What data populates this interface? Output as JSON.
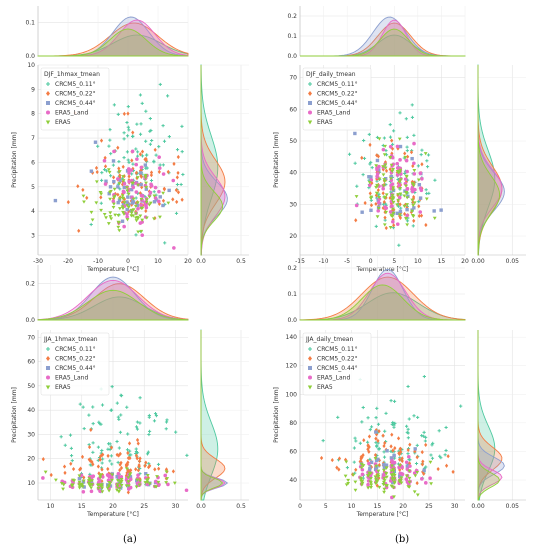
{
  "colors": {
    "CRCM5_0.11": "#4fc9a0",
    "CRCM5_0.22": "#f47c44",
    "CRCM5_0.44": "#8c9fcf",
    "ERA5_Land": "#e86bc7",
    "ERA5": "#8fce3a"
  },
  "legend_labels": [
    "CRCM5_0.11°",
    "CRCM5_0.22°",
    "CRCM5_0.44°",
    "ERA5_Land",
    "ERA5"
  ],
  "captions": {
    "a": "(a)",
    "b": "(b)"
  },
  "chart_data": [
    {
      "type": "scatter",
      "title": "DJF_1hmax_tmean",
      "xlabel": "Temperature [°C]",
      "ylabel": "Precipitation [mm]",
      "xlim": [
        -30,
        20
      ],
      "ylim": [
        2.2,
        10.0
      ],
      "xticks": [
        -30,
        -20,
        -10,
        0,
        10,
        20
      ],
      "yticks": [
        3,
        4,
        5,
        6,
        7,
        8,
        9,
        10
      ],
      "top_marginal": {
        "ylim": [
          0,
          0.15
        ],
        "yticks": [
          "0.0",
          "0.1"
        ]
      },
      "right_marginal": {
        "xlim": [
          0,
          0.6
        ],
        "xticks": [
          "0.0",
          "0.5"
        ]
      },
      "legend_position": "upper-left",
      "series": [
        {
          "name": "CRCM5_0.11°",
          "x_mean": 3,
          "x_sd": 8,
          "y_mean": 5.8,
          "y_sd": 1.3,
          "n": 120
        },
        {
          "name": "CRCM5_0.22°",
          "x_mean": 2,
          "x_sd": 8,
          "y_mean": 5.2,
          "y_sd": 0.9,
          "n": 100
        },
        {
          "name": "CRCM5_0.44°",
          "x_mean": 1,
          "x_sd": 6,
          "y_mean": 4.5,
          "y_sd": 0.7,
          "n": 40
        },
        {
          "name": "ERA5_Land",
          "x_mean": 3,
          "x_sd": 6,
          "y_mean": 4.6,
          "y_sd": 0.8,
          "n": 70
        },
        {
          "name": "ERA5",
          "x_mean": 0,
          "x_sd": 6,
          "y_mean": 4.2,
          "y_sd": 0.6,
          "n": 90
        }
      ]
    },
    {
      "type": "scatter",
      "title": "DJF_daily_tmean",
      "xlabel": "Temperature [°C]",
      "ylabel": "Precipitation [mm]",
      "xlim": [
        -15,
        20
      ],
      "ylim": [
        14,
        74
      ],
      "xticks": [
        -15,
        -10,
        -5,
        0,
        5,
        10,
        15,
        20
      ],
      "yticks": [
        20,
        30,
        40,
        50,
        60,
        70
      ],
      "top_marginal": {
        "ylim": [
          0,
          0.25
        ],
        "yticks": [
          "0.0",
          "0.1",
          "0.2"
        ]
      },
      "right_marginal": {
        "xlim": [
          0,
          0.07
        ],
        "xticks": [
          "0.00",
          "0.05"
        ]
      },
      "legend_position": "upper-left",
      "series": [
        {
          "name": "CRCM5_0.11°",
          "x_mean": 5,
          "x_sd": 3.5,
          "y_mean": 38,
          "y_sd": 9,
          "n": 110
        },
        {
          "name": "CRCM5_0.22°",
          "x_mean": 5,
          "x_sd": 3.5,
          "y_mean": 35,
          "y_sd": 7,
          "n": 90
        },
        {
          "name": "CRCM5_0.44°",
          "x_mean": 4,
          "x_sd": 3.5,
          "y_mean": 34,
          "y_sd": 6,
          "n": 30
        },
        {
          "name": "ERA5_Land",
          "x_mean": 5,
          "x_sd": 2.5,
          "y_mean": 35,
          "y_sd": 6,
          "n": 70
        },
        {
          "name": "ERA5",
          "x_mean": 5,
          "x_sd": 3,
          "y_mean": 33,
          "y_sd": 6,
          "n": 90
        }
      ]
    },
    {
      "type": "scatter",
      "title": "JJA_1hmax_tmean",
      "xlabel": "Temperature [°C]",
      "ylabel": "Precipitation [mm]",
      "xlim": [
        8,
        32
      ],
      "ylim": [
        3,
        73
      ],
      "xticks": [
        10,
        15,
        20,
        25,
        30
      ],
      "yticks": [
        10,
        20,
        30,
        40,
        50,
        60,
        70
      ],
      "top_marginal": {
        "ylim": [
          0,
          0.3
        ],
        "yticks": [
          "0.0",
          "0.2"
        ]
      },
      "right_marginal": {
        "xlim": [
          0,
          0.6
        ],
        "xticks": [
          "0.0",
          "0.5"
        ]
      },
      "legend_position": "upper-left",
      "series": [
        {
          "name": "CRCM5_0.11°",
          "x_mean": 21,
          "x_sd": 4,
          "y_mean": 24,
          "y_sd": 11,
          "n": 110
        },
        {
          "name": "CRCM5_0.22°",
          "x_mean": 21,
          "x_sd": 4,
          "y_mean": 16,
          "y_sd": 4,
          "n": 90
        },
        {
          "name": "CRCM5_0.44°",
          "x_mean": 20,
          "x_sd": 3.5,
          "y_mean": 10,
          "y_sd": 2,
          "n": 30
        },
        {
          "name": "ERA5_Land",
          "x_mean": 20,
          "x_sd": 4,
          "y_mean": 10,
          "y_sd": 2,
          "n": 70
        },
        {
          "name": "ERA5",
          "x_mean": 20,
          "x_sd": 4,
          "y_mean": 10,
          "y_sd": 2,
          "n": 90
        }
      ]
    },
    {
      "type": "scatter",
      "title": "JJA_daily_tmean",
      "xlabel": "Temperature [°C]",
      "ylabel": "Precipitation [mm]",
      "xlim": [
        0,
        32
      ],
      "ylim": [
        26,
        145
      ],
      "xticks": [
        0,
        5,
        10,
        15,
        20,
        25,
        30
      ],
      "yticks": [
        40,
        60,
        80,
        100,
        120,
        140
      ],
      "top_marginal": {
        "ylim": [
          0,
          0.25
        ],
        "yticks": [
          "0.0",
          "0.1",
          "0.2"
        ]
      },
      "right_marginal": {
        "xlim": [
          0,
          0.07
        ],
        "xticks": [
          "0.00",
          "0.05"
        ]
      },
      "legend_position": "upper-left",
      "series": [
        {
          "name": "CRCM5_0.11°",
          "x_mean": 18,
          "x_sd": 5,
          "y_mean": 62,
          "y_sd": 16,
          "n": 110
        },
        {
          "name": "CRCM5_0.22°",
          "x_mean": 17,
          "x_sd": 5,
          "y_mean": 55,
          "y_sd": 8,
          "n": 90
        },
        {
          "name": "CRCM5_0.44°",
          "x_mean": 17,
          "x_sd": 3,
          "y_mean": 50,
          "y_sd": 6,
          "n": 30
        },
        {
          "name": "ERA5_Land",
          "x_mean": 17,
          "x_sd": 3.5,
          "y_mean": 42,
          "y_sd": 5,
          "n": 70
        },
        {
          "name": "ERA5",
          "x_mean": 16,
          "x_sd": 4,
          "y_mean": 40,
          "y_sd": 5,
          "n": 90
        }
      ]
    }
  ]
}
